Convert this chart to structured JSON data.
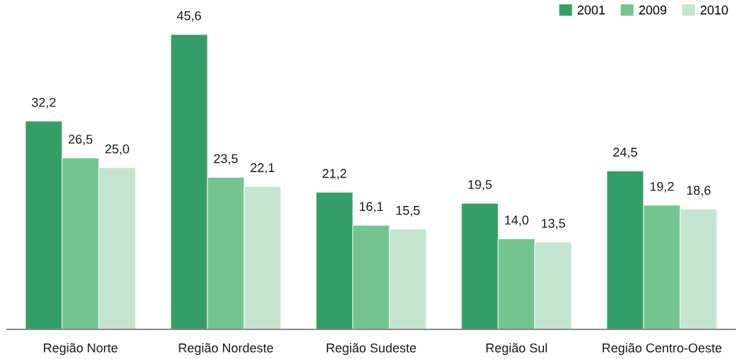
{
  "chart_data": {
    "type": "bar",
    "categories": [
      "Região Norte",
      "Região Nordeste",
      "Região Sudeste",
      "Região Sul",
      "Região Centro-Oeste"
    ],
    "series": [
      {
        "name": "2001",
        "color": "#359e66",
        "values": [
          32.2,
          45.6,
          21.2,
          19.5,
          24.5
        ],
        "value_labels": [
          "32,2",
          "45,6",
          "21,2",
          "19,5",
          "24,5"
        ]
      },
      {
        "name": "2009",
        "color": "#74c490",
        "values": [
          26.5,
          23.5,
          16.1,
          14.0,
          19.2
        ],
        "value_labels": [
          "26,5",
          "23,5",
          "16,1",
          "14,0",
          "19,2"
        ]
      },
      {
        "name": "2010",
        "color": "#c3e5cf",
        "values": [
          25.0,
          22.1,
          15.5,
          13.5,
          18.6
        ],
        "value_labels": [
          "25,0",
          "22,1",
          "15,5",
          "13,5",
          "18,6"
        ]
      }
    ],
    "legend": "top right",
    "grid": false
  }
}
